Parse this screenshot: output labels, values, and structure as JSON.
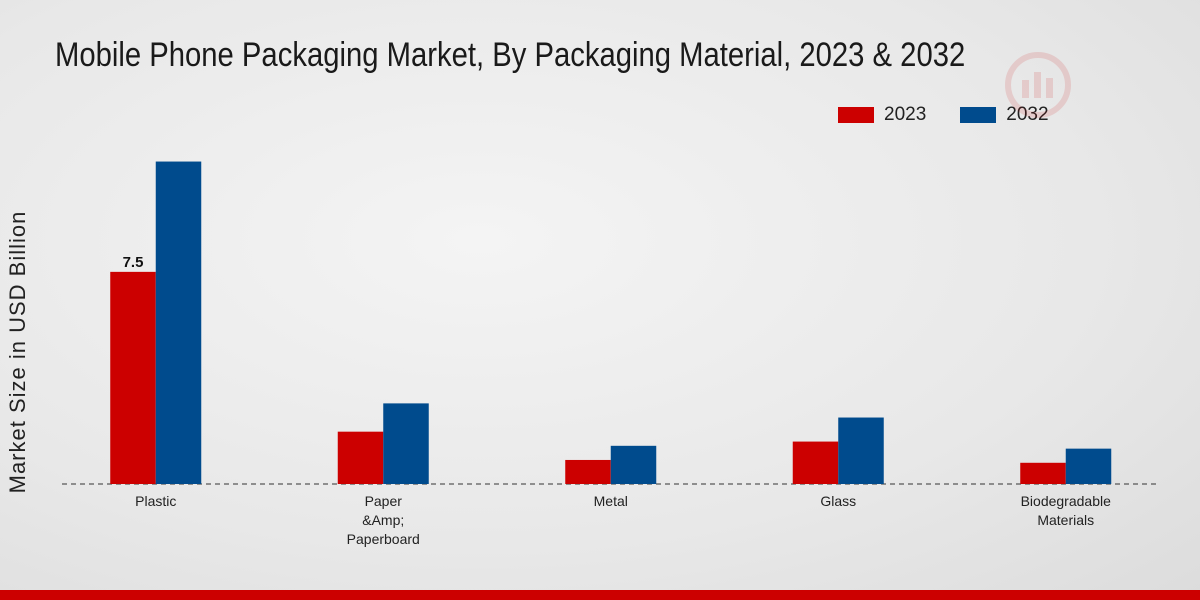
{
  "chart_data": {
    "type": "bar",
    "title": "Mobile Phone Packaging Market, By Packaging Material, 2023 & 2032",
    "ylabel": "Market Size in USD Billion",
    "xlabel": "",
    "categories": [
      [
        "Plastic"
      ],
      [
        "Paper",
        "&Amp;",
        "Paperboard"
      ],
      [
        "Metal"
      ],
      [
        "Glass"
      ],
      [
        "Biodegradable",
        "Materials"
      ]
    ],
    "series": [
      {
        "name": "2023",
        "color": "#cc0000",
        "values": [
          7.5,
          1.85,
          0.85,
          1.5,
          0.75
        ]
      },
      {
        "name": "2032",
        "color": "#004b8d",
        "values": [
          11.4,
          2.85,
          1.35,
          2.35,
          1.25
        ]
      }
    ],
    "data_labels": [
      {
        "series": 0,
        "index": 0,
        "text": "7.5"
      }
    ],
    "ylim": [
      0,
      14
    ],
    "legend_position": "top-right",
    "grid": false
  }
}
